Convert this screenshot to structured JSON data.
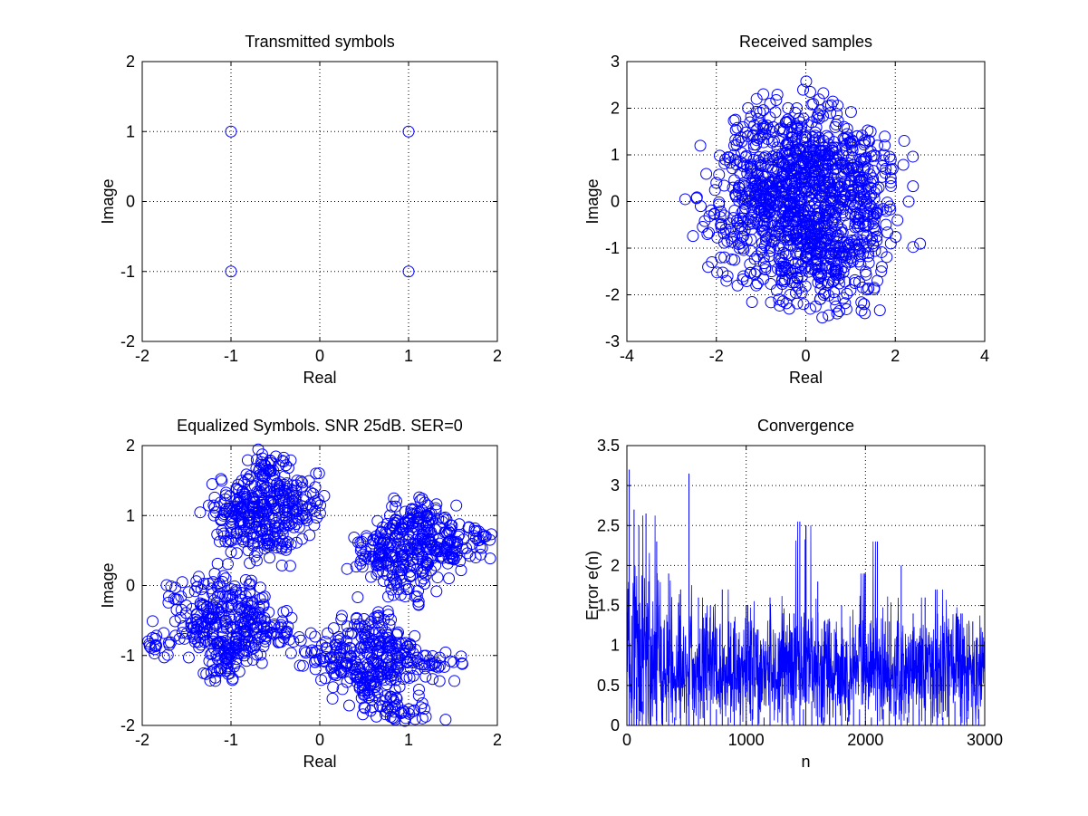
{
  "figure": {
    "background": "#ffffff",
    "series_color": "#0000ff"
  },
  "chart_data": [
    {
      "id": "tx",
      "type": "scatter",
      "title": "Transmitted symbols",
      "xlabel": "Real",
      "ylabel": "Image",
      "xlim": [
        -2,
        2
      ],
      "ylim": [
        -2,
        2
      ],
      "xticks": [
        -2,
        -1,
        0,
        1,
        2
      ],
      "yticks": [
        -2,
        -1,
        0,
        1,
        2
      ],
      "xtick_labels": [
        "-2",
        "-1",
        "0",
        "1",
        "2"
      ],
      "ytick_labels": [
        "-2",
        "-1",
        "0",
        "1",
        "2"
      ],
      "grid": true,
      "marker": "circle",
      "series": [
        {
          "x": [
            -1,
            1,
            -1,
            1
          ],
          "y": [
            1,
            1,
            -1,
            -1
          ]
        }
      ]
    },
    {
      "id": "rx",
      "type": "scatter",
      "title": "Received samples",
      "xlabel": "Real",
      "ylabel": "Image",
      "xlim": [
        -4,
        4
      ],
      "ylim": [
        -3,
        3
      ],
      "xticks": [
        -4,
        -2,
        0,
        2,
        4
      ],
      "yticks": [
        -3,
        -2,
        -1,
        0,
        1,
        2,
        3
      ],
      "xtick_labels": [
        "-4",
        "-2",
        "0",
        "2",
        "4"
      ],
      "ytick_labels": [
        "-3",
        "-2",
        "-1",
        "0",
        "1",
        "2",
        "3"
      ],
      "grid": true,
      "marker": "circle",
      "series": [
        {
          "x": [
            -2.35,
            -2.2,
            -2.1,
            -2.0,
            -1.9,
            -1.75,
            -1.6,
            -1.5,
            -1.4,
            -1.25,
            -1.1,
            -0.95,
            -0.8,
            -0.65,
            -0.5,
            -0.35,
            -0.2,
            -0.05,
            0.1,
            0.25,
            0.4,
            0.55,
            0.7,
            0.85,
            1.0,
            1.15,
            1.3,
            1.45,
            1.6,
            1.75,
            1.9,
            2.05,
            2.2,
            2.3,
            -1.8,
            -1.5,
            -1.2,
            -0.9,
            -0.6,
            -0.3,
            0.0,
            0.3,
            0.6,
            0.9,
            1.2,
            1.5,
            1.8,
            -1.7,
            -1.3,
            -0.9,
            -0.5,
            -0.1,
            0.3,
            0.7,
            1.1,
            1.5,
            1.9,
            -1.6,
            -1.1,
            -0.6,
            -0.1,
            0.4,
            0.9,
            1.4,
            1.9,
            -1.4,
            -0.8,
            -0.2,
            0.4,
            1.0,
            1.6,
            -1.9,
            -1.0,
            0.0,
            1.0,
            1.7,
            -0.8,
            0.0,
            0.8,
            -0.5,
            0.5,
            0.75,
            0.1,
            -0.6,
            -1.1,
            1.3
          ],
          "y": [
            -0.1,
            -0.7,
            -1.3,
            0.4,
            -0.5,
            -1.6,
            1.2,
            0.2,
            -1.0,
            1.7,
            2.2,
            2.3,
            2.1,
            -1.9,
            1.5,
            -2.0,
            2.0,
            -2.2,
            2.35,
            1.8,
            -2.0,
            1.9,
            -2.4,
            1.6,
            -1.9,
            1.4,
            -2.2,
            1.5,
            -1.7,
            1.0,
            0.5,
            -0.4,
            1.3,
            0.0,
            0.9,
            0.3,
            -0.3,
            0.8,
            -0.7,
            1.2,
            -1.2,
            0.6,
            -0.4,
            1.1,
            0.2,
            -0.9,
            -0.2,
            -0.6,
            1.4,
            -1.4,
            0.1,
            1.6,
            -1.6,
            0.9,
            -0.1,
            0.5,
            -0.9,
            1.0,
            0.6,
            -1.0,
            0.4,
            -0.8,
            0.7,
            -0.5,
            0.9,
            -0.2,
            1.8,
            -1.8,
            1.3,
            -1.3,
            1.2,
            -1.2,
            0.0,
            0.2,
            0.0,
            -1.4,
            -0.2,
            0.5,
            -0.6,
            -1.1,
            1.0,
            -2.35,
            -2.3,
            -2.1,
            -1.5,
            -2.2
          ]
        }
      ]
    },
    {
      "id": "eq",
      "type": "scatter",
      "title": "Equalized Symbols. SNR 25dB. SER=0",
      "xlabel": "Real",
      "ylabel": "Image",
      "xlim": [
        -2,
        2
      ],
      "ylim": [
        -2,
        2
      ],
      "xticks": [
        -2,
        -1,
        0,
        1,
        2
      ],
      "yticks": [
        -2,
        -1,
        0,
        1,
        2
      ],
      "xtick_labels": [
        "-2",
        "-1",
        "0",
        "1",
        "2"
      ],
      "ytick_labels": [
        "-2",
        "-1",
        "0",
        "1",
        "2"
      ],
      "grid": true,
      "marker": "circle",
      "series": [
        {
          "x": [
            -0.6,
            -0.9,
            -0.3,
            -0.6,
            -0.6,
            -0.85,
            -0.35,
            -0.8,
            -0.4,
            -1.05,
            -0.15,
            -0.6,
            -0.75,
            -0.45,
            -1.0,
            -0.2,
            -0.55,
            -0.65,
            1.05,
            0.75,
            1.35,
            1.05,
            1.05,
            0.8,
            1.3,
            0.85,
            1.25,
            0.6,
            1.55,
            1.1,
            0.9,
            1.2,
            0.65,
            1.45,
            1.0,
            1.8,
            -1.0,
            -1.3,
            -0.7,
            -1.0,
            -1.0,
            -1.25,
            -0.75,
            -1.2,
            -0.8,
            -1.45,
            -0.55,
            -1.05,
            -0.9,
            -1.15,
            -1.85,
            -0.4,
            -1.6,
            -1.2,
            0.6,
            0.3,
            0.9,
            0.6,
            0.6,
            0.35,
            0.85,
            0.4,
            0.8,
            0.15,
            1.05,
            0.55,
            0.7,
            0.45,
            0.0,
            1.35,
            0.75,
            1.05
          ],
          "y": [
            1.1,
            1.1,
            1.1,
            1.4,
            0.8,
            1.3,
            1.3,
            0.9,
            0.9,
            1.1,
            1.1,
            1.6,
            0.6,
            0.6,
            0.75,
            1.4,
            1.75,
            1.2,
            0.6,
            0.6,
            0.6,
            0.9,
            0.3,
            0.8,
            0.8,
            0.4,
            0.4,
            0.6,
            0.6,
            1.05,
            0.15,
            1.0,
            0.3,
            0.4,
            -0.05,
            0.65,
            -0.6,
            -0.6,
            -0.6,
            -0.3,
            -0.9,
            -0.4,
            -0.4,
            -0.8,
            -0.8,
            -0.6,
            -0.6,
            -1.1,
            -0.15,
            -1.05,
            -0.85,
            -0.7,
            -0.2,
            0.05,
            -1.1,
            -1.1,
            -1.1,
            -0.8,
            -1.4,
            -0.9,
            -0.9,
            -1.3,
            -1.3,
            -1.1,
            -1.1,
            -1.6,
            -0.6,
            -0.55,
            -1.05,
            -1.15,
            -1.8,
            -1.8
          ]
        }
      ]
    },
    {
      "id": "conv",
      "type": "line",
      "title": "Convergence",
      "xlabel": "n",
      "ylabel": "Error e(n)",
      "xlim": [
        0,
        3000
      ],
      "ylim": [
        0,
        3.5
      ],
      "xticks": [
        0,
        1000,
        2000,
        3000
      ],
      "yticks": [
        0,
        0.5,
        1,
        1.5,
        2,
        2.5,
        3,
        3.5
      ],
      "xtick_labels": [
        "0",
        "1000",
        "2000",
        "3000"
      ],
      "ytick_labels": [
        "0",
        "0.5",
        "1",
        "1.5",
        "2",
        "2.5",
        "3",
        "3.5"
      ],
      "grid": true,
      "series": [
        {
          "x": [
            0,
            20,
            40,
            60,
            80,
            100,
            130,
            160,
            200,
            250,
            300,
            350,
            400,
            450,
            500,
            520,
            560,
            600,
            650,
            700,
            750,
            800,
            850,
            900,
            950,
            1000,
            1050,
            1100,
            1150,
            1200,
            1250,
            1300,
            1350,
            1400,
            1450,
            1480,
            1500,
            1550,
            1600,
            1650,
            1700,
            1750,
            1800,
            1850,
            1900,
            1950,
            2000,
            2050,
            2100,
            2150,
            2200,
            2250,
            2300,
            2350,
            2400,
            2450,
            2500,
            2550,
            2600,
            2650,
            2700,
            2750,
            2800,
            2850,
            2900,
            2950,
            3000
          ],
          "y": [
            1.0,
            3.2,
            0.2,
            2.7,
            0.6,
            2.5,
            0.3,
            2.65,
            0.5,
            2.3,
            0.4,
            1.9,
            0.1,
            1.7,
            0.4,
            3.15,
            0.2,
            1.6,
            0.3,
            1.5,
            0.2,
            1.7,
            0.1,
            1.3,
            0.3,
            1.5,
            0.2,
            1.2,
            0.1,
            1.6,
            0.0,
            1.1,
            0.3,
            1.4,
            2.55,
            0.2,
            2.5,
            0.3,
            1.8,
            0.1,
            1.3,
            0.4,
            1.5,
            0.1,
            1.1,
            0.2,
            1.9,
            0.1,
            2.3,
            0.2,
            1.3,
            0.3,
            2.0,
            0.1,
            1.4,
            0.2,
            1.6,
            0.3,
            1.7,
            0.1,
            1.2,
            0.3,
            1.4,
            0.1,
            1.3,
            0.2,
            1.3
          ]
        }
      ]
    }
  ]
}
